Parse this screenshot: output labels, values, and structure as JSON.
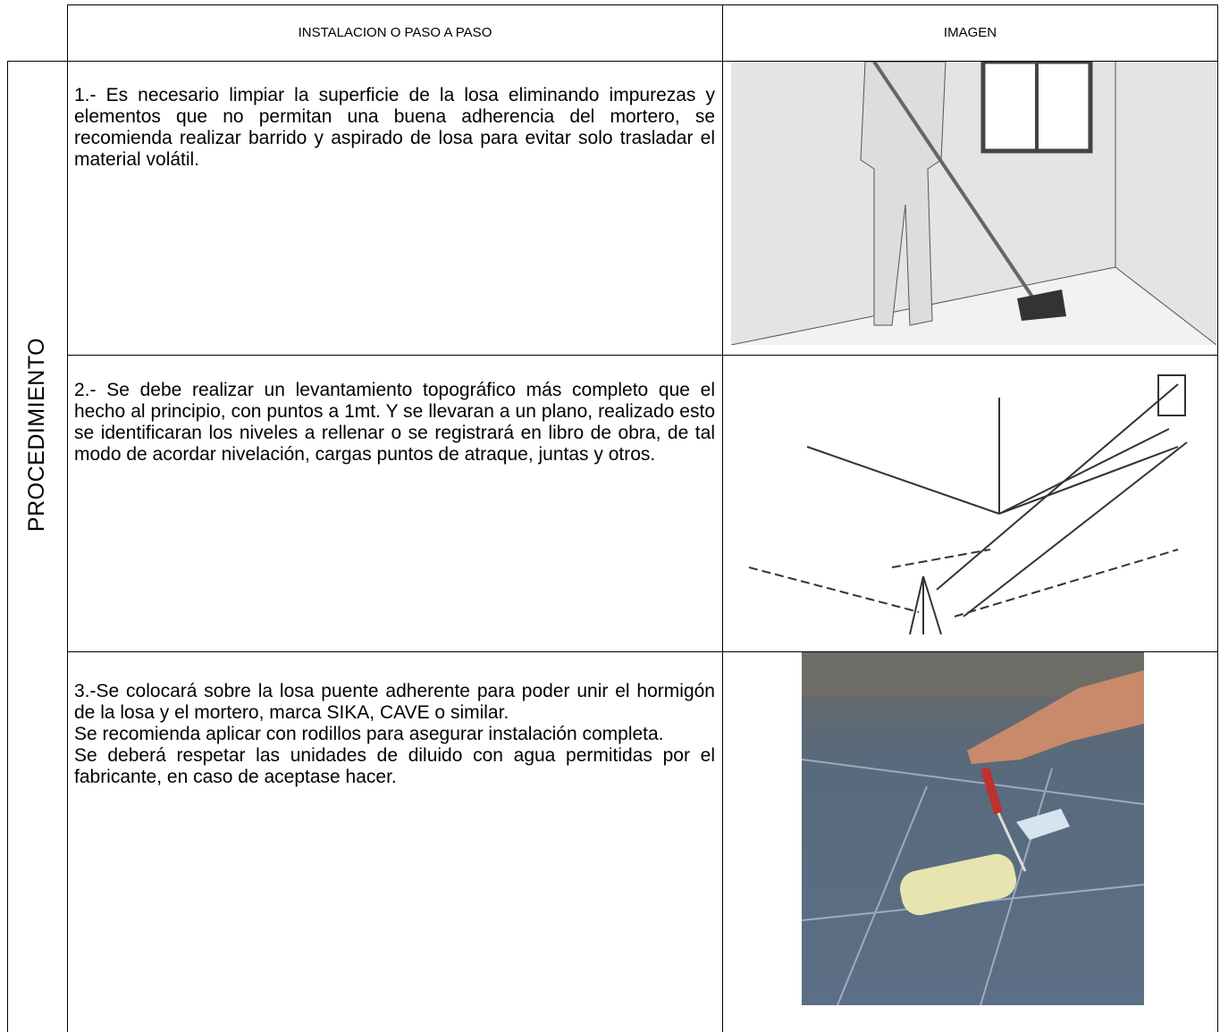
{
  "table": {
    "header": [
      "INSTALACION O PASO A PASO",
      "IMAGEN"
    ],
    "side_label": "PROCEDIMIENTO",
    "rows": [
      {
        "paragraphs": [
          "1.- Es necesario limpiar la superficie de la losa eliminando impurezas y elementos que no permitan una buena adherencia del mortero, se recomienda realizar barrido y aspirado de losa para evitar solo trasladar el material volátil."
        ]
      },
      {
        "paragraphs": [
          "2.- Se debe realizar un levantamiento topográfico más completo que el hecho al principio, con puntos a 1mt. Y se llevaran a un plano, realizado esto se identificaran los niveles a rellenar o se registrará en libro de obra, de tal modo de acordar nivelación, cargas puntos de atraque, juntas y otros."
        ]
      },
      {
        "paragraphs": [
          "3.-Se colocará sobre la losa puente adherente para poder unir el hormigón de la losa y el mortero, marca SIKA, CAVE o similar.",
          "Se recomienda aplicar con rodillos para asegurar instalación completa.",
          "Se deberá respetar las unidades de diluido con agua permitidas por el fabricante, en caso de aceptase hacer."
        ]
      }
    ]
  }
}
